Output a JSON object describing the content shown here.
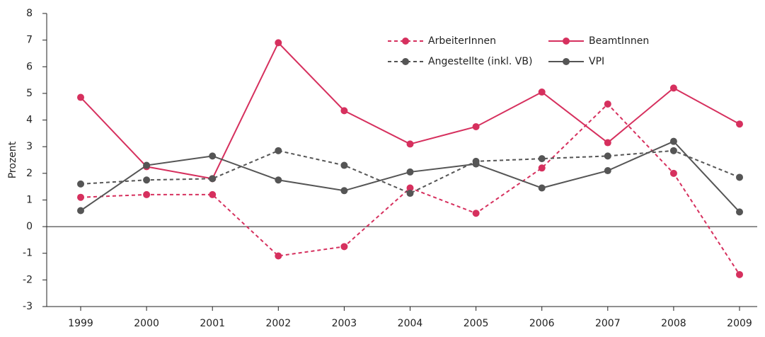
{
  "chart_data": {
    "type": "line",
    "y_label": "Prozent",
    "categories": [
      "1999",
      "2000",
      "2001",
      "2002",
      "2003",
      "2004",
      "2005",
      "2006",
      "2007",
      "2008",
      "2009"
    ],
    "series": [
      {
        "name": "ArbeiterInnen",
        "color": "#d6305e",
        "style": "dotted",
        "values": [
          1.1,
          1.2,
          1.2,
          -1.1,
          -0.75,
          1.45,
          0.5,
          2.2,
          4.6,
          2.0,
          -1.8
        ]
      },
      {
        "name": "BeamtInnen",
        "color": "#d6305e",
        "style": "solid",
        "values": [
          4.85,
          2.25,
          1.8,
          6.9,
          4.35,
          3.1,
          3.75,
          5.05,
          3.15,
          5.2,
          3.85
        ]
      },
      {
        "name": "Angestellte (inkl. VB)",
        "color": "#555555",
        "style": "dotted",
        "values": [
          1.6,
          1.75,
          1.8,
          2.85,
          2.3,
          1.25,
          2.45,
          2.55,
          2.65,
          2.85,
          1.85
        ]
      },
      {
        "name": "VPI",
        "color": "#555555",
        "style": "solid",
        "values": [
          0.6,
          2.3,
          2.65,
          1.75,
          1.35,
          2.05,
          2.35,
          1.45,
          2.1,
          3.2,
          0.55
        ]
      }
    ],
    "ylim": [
      -3,
      8
    ],
    "yticks": [
      -3,
      -2,
      -1,
      0,
      1,
      2,
      3,
      4,
      5,
      6,
      7,
      8
    ],
    "zero_line": true
  }
}
